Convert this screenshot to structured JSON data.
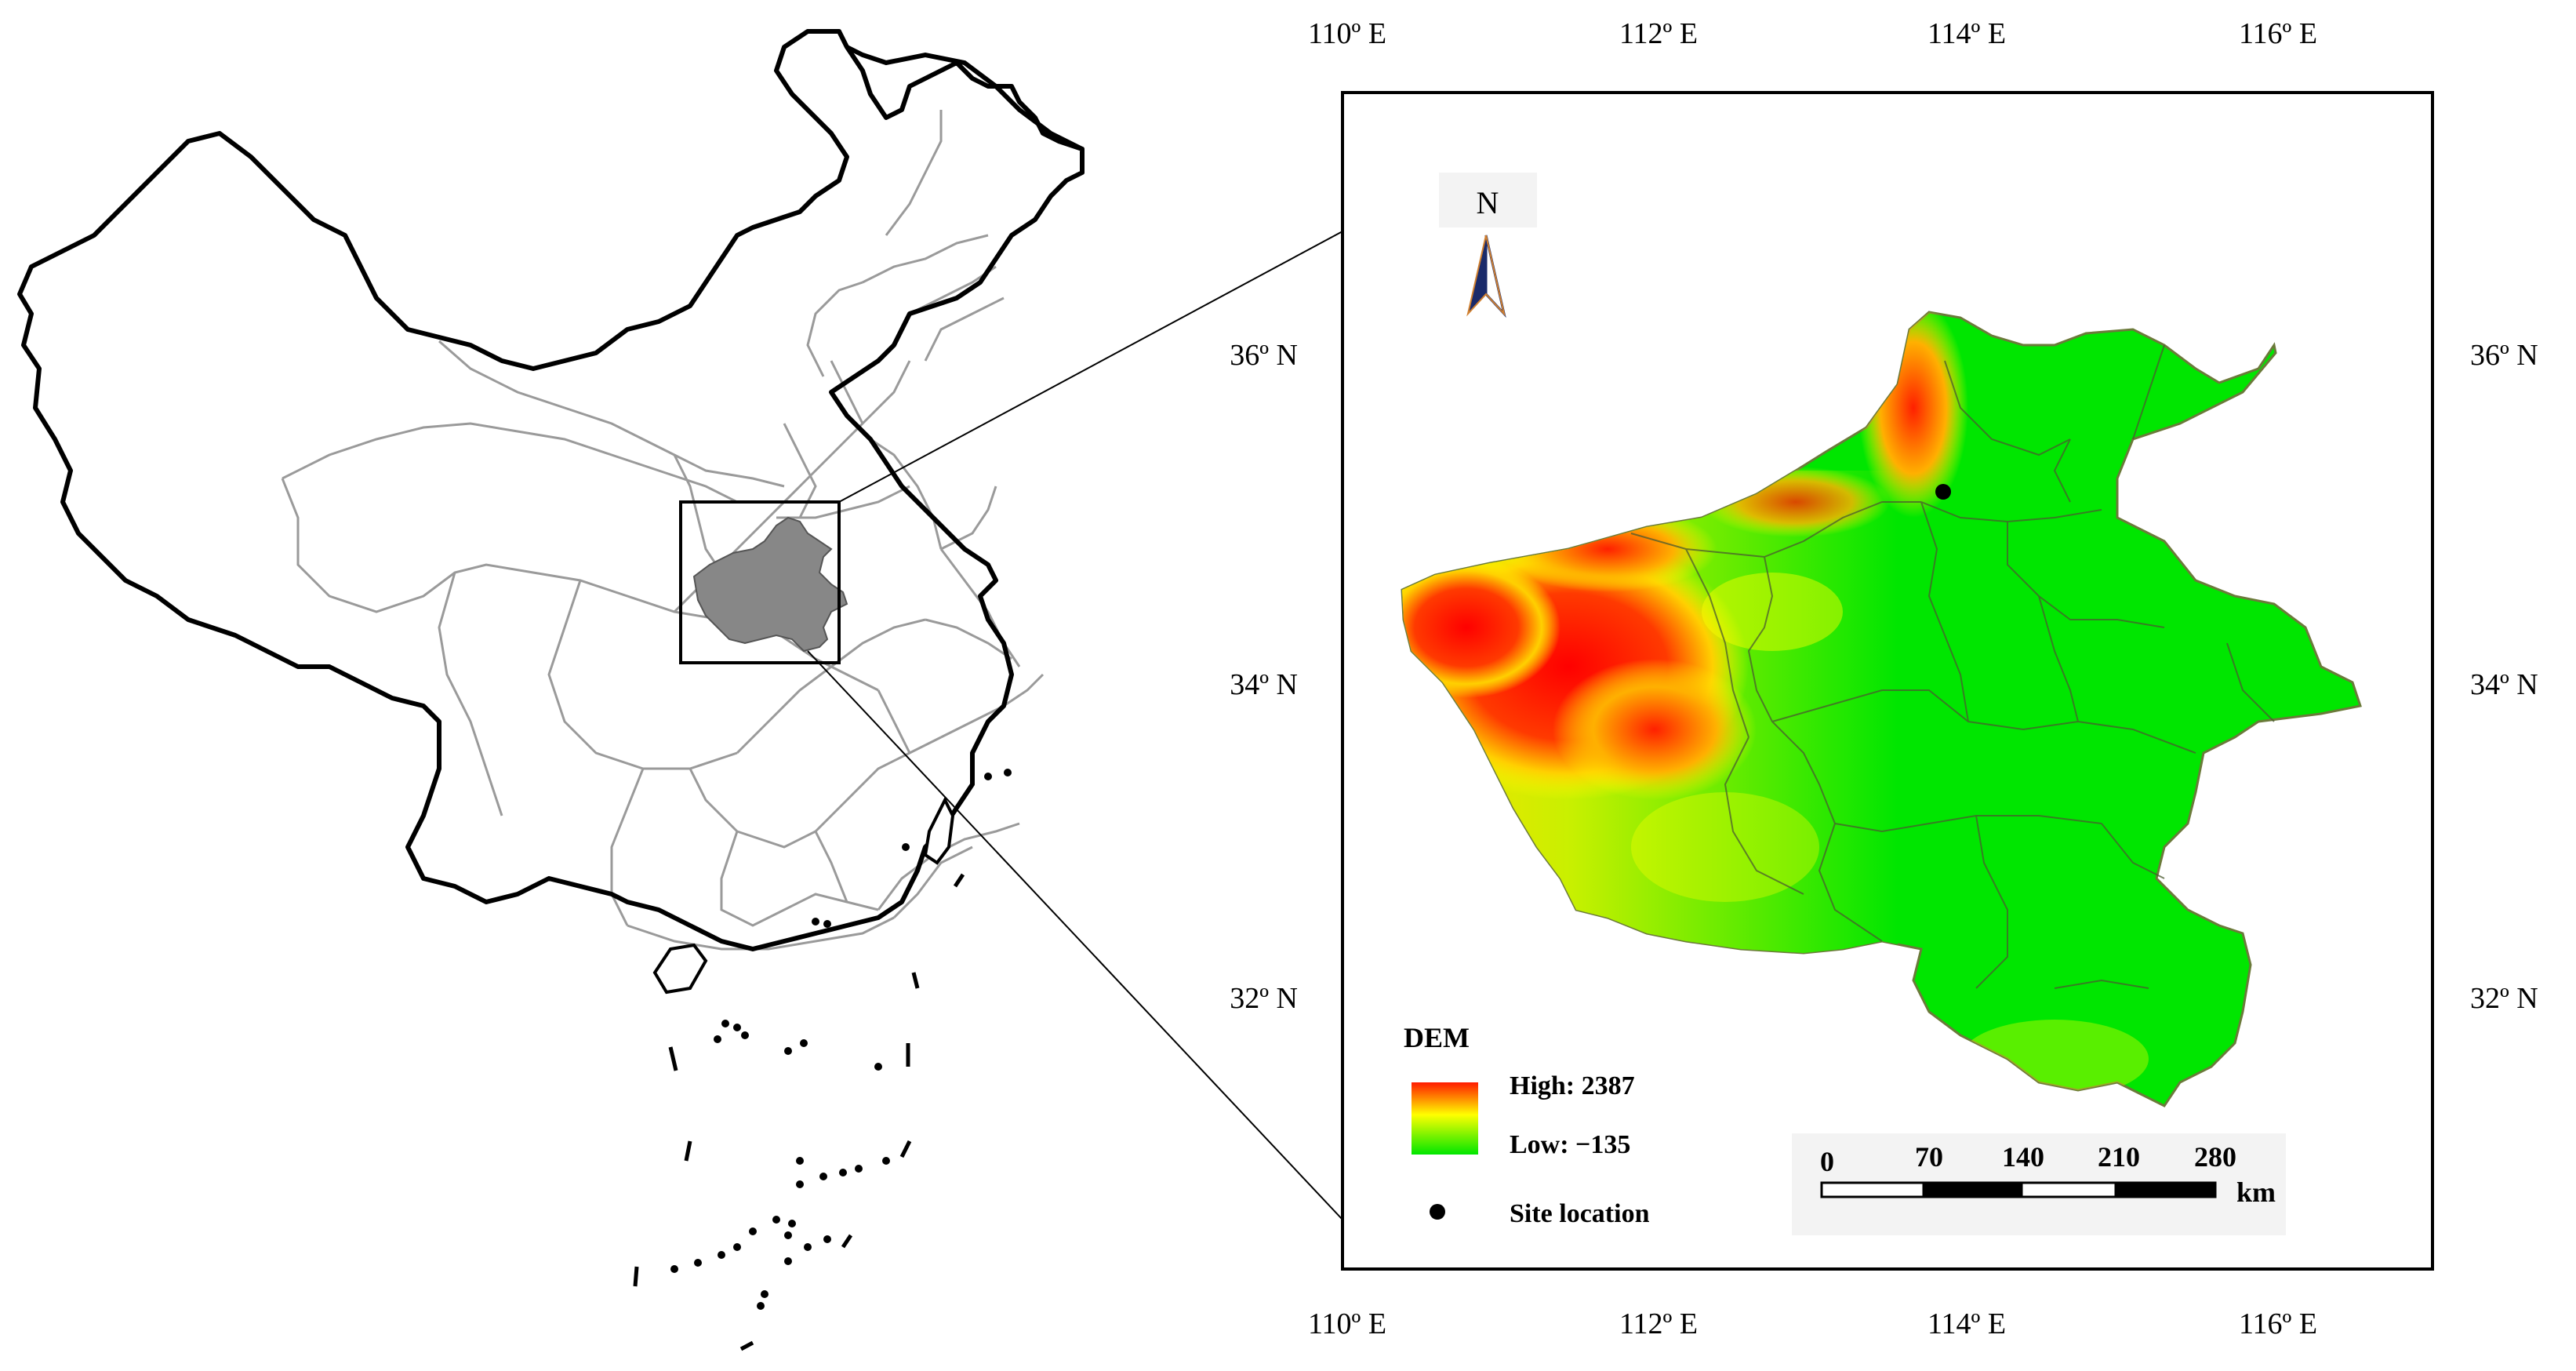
{
  "overview_map": {
    "region_names": []
  },
  "detail_map": {
    "top_lon_labels": [
      "110º E",
      "112º E",
      "114º E",
      "116º E"
    ],
    "bottom_lon_labels": [
      "110º E",
      "112º E",
      "114º E",
      "116º E"
    ],
    "left_lat_labels": [
      "36º N",
      "34º N",
      "32º N"
    ],
    "right_lat_labels": [
      "36º N",
      "34º N",
      "32º N"
    ],
    "north_arrow": {
      "label": "N",
      "icon": "north-arrow-icon"
    },
    "legend": {
      "title": "DEM",
      "high_label": "High: 2387",
      "low_label": "Low: −135",
      "site_label": "Site location",
      "colors": {
        "high": "#ff0000",
        "mid": "#ffff00",
        "low": "#00e600"
      }
    },
    "scale_bar": {
      "ticks": [
        "0",
        "70",
        "140",
        "210",
        "280"
      ],
      "unit": "km"
    }
  }
}
